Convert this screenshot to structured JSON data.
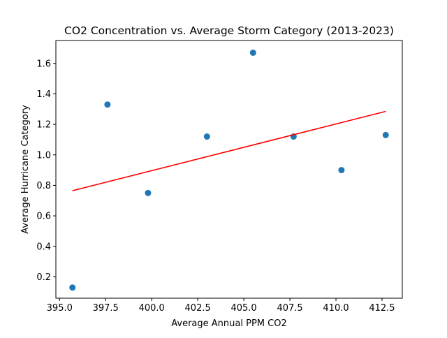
{
  "chart_data": {
    "type": "scatter",
    "title": "CO2 Concentration vs. Average Storm Category (2013-2023)",
    "xlabel": "Average Annual PPM CO2",
    "ylabel": "Average Hurricane Category",
    "xlim": [
      394.8,
      413.6
    ],
    "ylim": [
      0.06,
      1.75
    ],
    "xticks": [
      395.0,
      397.5,
      400.0,
      402.5,
      405.0,
      407.5,
      410.0,
      412.5
    ],
    "xtick_labels": [
      "395.0",
      "397.5",
      "400.0",
      "402.5",
      "405.0",
      "407.5",
      "410.0",
      "412.5"
    ],
    "yticks": [
      0.2,
      0.4,
      0.6,
      0.8,
      1.0,
      1.2,
      1.4,
      1.6
    ],
    "ytick_labels": [
      "0.2",
      "0.4",
      "0.6",
      "0.8",
      "1.0",
      "1.2",
      "1.4",
      "1.6"
    ],
    "grid": false,
    "series": [
      {
        "kind": "scatter",
        "color": "#1f77b4",
        "x": [
          395.7,
          397.6,
          399.8,
          403.0,
          405.5,
          407.7,
          410.3,
          412.7
        ],
        "y": [
          0.13,
          1.33,
          0.75,
          1.12,
          1.67,
          1.12,
          0.9,
          1.13
        ]
      },
      {
        "kind": "line",
        "color": "#ff0000",
        "x": [
          395.7,
          412.7
        ],
        "y": [
          0.765,
          1.285
        ]
      }
    ]
  }
}
